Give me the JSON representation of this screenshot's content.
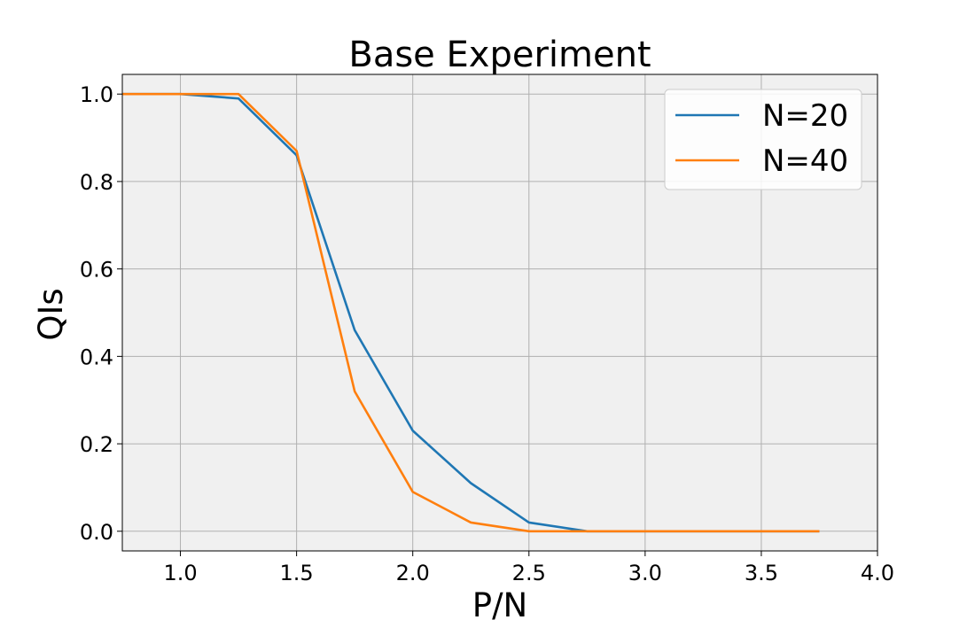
{
  "chart_data": {
    "type": "line",
    "title": "Base Experiment",
    "xlabel": "P/N",
    "ylabel": "QIs",
    "xlim": [
      0.75,
      4.0
    ],
    "ylim": [
      -0.045,
      1.045
    ],
    "xticks": [
      1.0,
      1.5,
      2.0,
      2.5,
      3.0,
      3.5,
      4.0
    ],
    "xtick_labels": [
      "1.0",
      "1.5",
      "2.0",
      "2.5",
      "3.0",
      "3.5",
      "4.0"
    ],
    "yticks": [
      0.0,
      0.2,
      0.4,
      0.6,
      0.8,
      1.0
    ],
    "ytick_labels": [
      "0.0",
      "0.2",
      "0.4",
      "0.6",
      "0.8",
      "1.0"
    ],
    "grid": true,
    "legend_position": "top-right",
    "background": "#f0f0f0",
    "x": [
      0.75,
      1.0,
      1.25,
      1.5,
      1.75,
      2.0,
      2.25,
      2.5,
      2.75,
      3.0,
      3.25,
      3.5,
      3.75
    ],
    "series": [
      {
        "name": "N=20",
        "color": "#1f77b4",
        "values": [
          1.0,
          1.0,
          0.99,
          0.86,
          0.46,
          0.23,
          0.11,
          0.02,
          0.0,
          0.0,
          0.0,
          0.0,
          0.0
        ]
      },
      {
        "name": "N=40",
        "color": "#ff7f0e",
        "values": [
          1.0,
          1.0,
          1.0,
          0.87,
          0.32,
          0.09,
          0.02,
          0.0,
          0.0,
          0.0,
          0.0,
          0.0,
          0.0
        ]
      }
    ]
  }
}
